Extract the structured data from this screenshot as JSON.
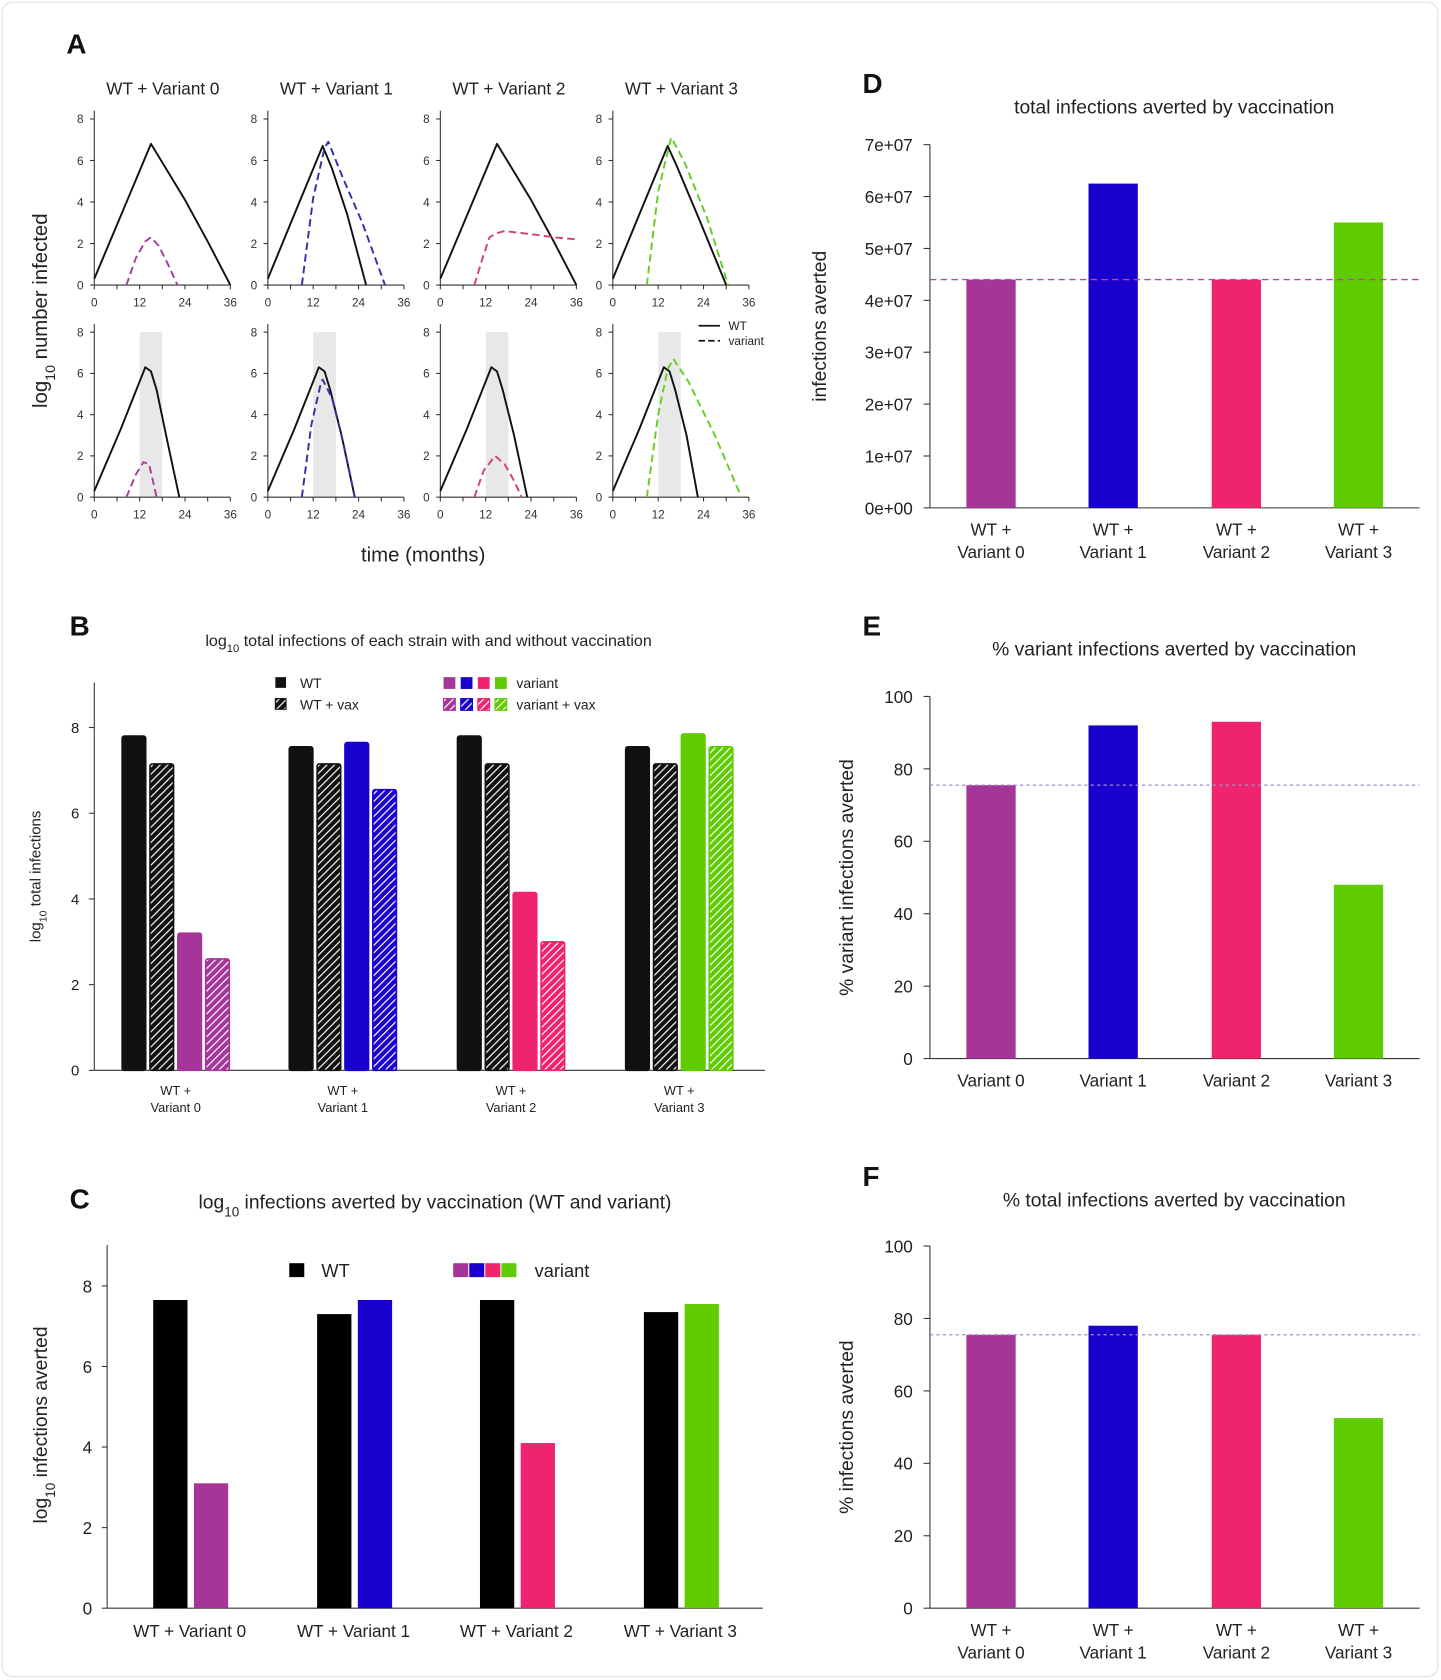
{
  "chart_data": [
    {
      "type": "line",
      "panel_label": "A",
      "xlabel": "time (months)",
      "ylabel": "log10 number infected",
      "xticks": [
        0,
        12,
        24,
        36
      ],
      "yticks": [
        0,
        2,
        4,
        6,
        8
      ],
      "xlim": [
        0,
        36
      ],
      "ylim": [
        0,
        8
      ],
      "legend": {
        "solid": "WT",
        "dashed": "variant",
        "placement": "right"
      },
      "rows": [
        {
          "vaccination_window": null,
          "subplots": [
            {
              "title": "WT + Variant 0",
              "color": "#a0409a",
              "wt": [
                [
                  0,
                  0.3
                ],
                [
                  6,
                  2.9
                ],
                [
                  12,
                  5.5
                ],
                [
                  15,
                  6.8
                ],
                [
                  18,
                  5.9
                ],
                [
                  24,
                  4.1
                ],
                [
                  30,
                  2.1
                ],
                [
                  36,
                  0
                ]
              ],
              "variant": [
                [
                  8.5,
                  0
                ],
                [
                  11,
                  1.3
                ],
                [
                  13.5,
                  2.1
                ],
                [
                  15,
                  2.3
                ],
                [
                  17,
                  1.9
                ],
                [
                  19.5,
                  1.0
                ],
                [
                  22,
                  0
                ]
              ]
            },
            {
              "title": "WT + Variant 1",
              "color": "#3030a8",
              "wt": [
                [
                  0,
                  0.3
                ],
                [
                  7,
                  3.4
                ],
                [
                  14.5,
                  6.7
                ],
                [
                  17,
                  5.6
                ],
                [
                  21,
                  3.4
                ],
                [
                  26,
                  0
                ]
              ],
              "variant": [
                [
                  9,
                  0
                ],
                [
                  12,
                  4.2
                ],
                [
                  15,
                  6.6
                ],
                [
                  16,
                  6.9
                ],
                [
                  20,
                  5.1
                ],
                [
                  25,
                  3.0
                ],
                [
                  31,
                  0
                ]
              ]
            },
            {
              "title": "WT + Variant 2",
              "color": "#d0407a",
              "wt": [
                [
                  0,
                  0.3
                ],
                [
                  6,
                  2.9
                ],
                [
                  12,
                  5.5
                ],
                [
                  15,
                  6.8
                ],
                [
                  18,
                  5.9
                ],
                [
                  24,
                  4.1
                ],
                [
                  30,
                  2.1
                ],
                [
                  36,
                  0
                ]
              ],
              "variant": [
                [
                  9,
                  0
                ],
                [
                  11,
                  1.2
                ],
                [
                  13,
                  2.3
                ],
                [
                  15,
                  2.5
                ],
                [
                  17,
                  2.6
                ],
                [
                  24,
                  2.45
                ],
                [
                  30,
                  2.3
                ],
                [
                  36,
                  2.2
                ]
              ]
            },
            {
              "title": "WT + Variant 3",
              "color": "#66cc22",
              "wt": [
                [
                  0,
                  0.3
                ],
                [
                  7,
                  3.4
                ],
                [
                  14.5,
                  6.7
                ],
                [
                  17,
                  5.7
                ],
                [
                  23,
                  3.1
                ],
                [
                  30,
                  0
                ]
              ],
              "variant": [
                [
                  9,
                  0
                ],
                [
                  12,
                  4.5
                ],
                [
                  15,
                  6.8
                ],
                [
                  15.5,
                  7.1
                ],
                [
                  19,
                  5.9
                ],
                [
                  25,
                  3.2
                ],
                [
                  30.5,
                  0
                ]
              ]
            }
          ]
        },
        {
          "vaccination_window": [
            12,
            18
          ],
          "subplots": [
            {
              "color": "#a0409a",
              "wt": [
                [
                  0,
                  0.3
                ],
                [
                  7,
                  3.3
                ],
                [
                  13.5,
                  6.3
                ],
                [
                  15,
                  6.1
                ],
                [
                  16.5,
                  5.2
                ],
                [
                  19,
                  3.0
                ],
                [
                  22.5,
                  0
                ]
              ],
              "variant": [
                [
                  8.5,
                  0
                ],
                [
                  11,
                  1.1
                ],
                [
                  13,
                  1.7
                ],
                [
                  14.5,
                  1.6
                ],
                [
                  16.5,
                  0
                ]
              ]
            },
            {
              "color": "#3030a8",
              "wt": [
                [
                  0,
                  0.3
                ],
                [
                  7,
                  3.3
                ],
                [
                  13.5,
                  6.3
                ],
                [
                  15,
                  6.1
                ],
                [
                  16.5,
                  5.2
                ],
                [
                  19.5,
                  3.0
                ],
                [
                  23,
                  0
                ]
              ],
              "variant": [
                [
                  9,
                  0
                ],
                [
                  11.5,
                  3.5
                ],
                [
                  14,
                  5.5
                ],
                [
                  14.5,
                  5.7
                ],
                [
                  17,
                  4.8
                ],
                [
                  20,
                  2.6
                ],
                [
                  23,
                  0
                ]
              ]
            },
            {
              "color": "#d0407a",
              "wt": [
                [
                  0,
                  0.3
                ],
                [
                  7,
                  3.3
                ],
                [
                  13.5,
                  6.3
                ],
                [
                  15,
                  6.1
                ],
                [
                  16.5,
                  5.2
                ],
                [
                  19.5,
                  3.0
                ],
                [
                  23,
                  0
                ]
              ],
              "variant": [
                [
                  9,
                  0
                ],
                [
                  11.5,
                  1.3
                ],
                [
                  14.5,
                  2.0
                ],
                [
                  17,
                  1.6
                ],
                [
                  19.5,
                  0.8
                ],
                [
                  21.5,
                  0
                ]
              ]
            },
            {
              "color": "#66cc22",
              "wt": [
                [
                  0,
                  0.3
                ],
                [
                  7,
                  3.3
                ],
                [
                  13.5,
                  6.3
                ],
                [
                  15,
                  6.1
                ],
                [
                  16.5,
                  5.2
                ],
                [
                  19.5,
                  3.0
                ],
                [
                  22.5,
                  0
                ]
              ],
              "variant": [
                [
                  9,
                  0
                ],
                [
                  12,
                  4.0
                ],
                [
                  14.5,
                  6.2
                ],
                [
                  16,
                  6.7
                ],
                [
                  20,
                  5.6
                ],
                [
                  27,
                  3.0
                ],
                [
                  34,
                  0
                ]
              ]
            }
          ]
        }
      ]
    },
    {
      "type": "bar",
      "panel_label": "B",
      "title": "log10 total infections of each strain with and without vaccination",
      "ylabel": "log10 total infections",
      "ylim": [
        0,
        9
      ],
      "yticks": [
        0,
        2,
        4,
        6,
        8
      ],
      "categories": [
        [
          "WT +",
          "Variant 0"
        ],
        [
          "WT +",
          "Variant 1"
        ],
        [
          "WT +",
          "Variant 2"
        ],
        [
          "WT +",
          "Variant 3"
        ]
      ],
      "variant_colors": [
        "#a6359a",
        "#1a00cc",
        "#f0246e",
        "#5fcc00"
      ],
      "series": [
        {
          "name": "WT",
          "values": [
            7.8,
            7.55,
            7.8,
            7.55
          ]
        },
        {
          "name": "WT + vax",
          "values": [
            7.15,
            7.15,
            7.15,
            7.15
          ]
        },
        {
          "name": "variant",
          "values": [
            3.2,
            7.65,
            4.15,
            7.85
          ]
        },
        {
          "name": "variant + vax",
          "values": [
            2.6,
            6.55,
            3.0,
            7.55
          ]
        }
      ],
      "legend_placement": "top-center"
    },
    {
      "type": "bar",
      "panel_label": "C",
      "title": "log10 infections averted by vaccination (WT and variant)",
      "ylabel": "log10 infections averted",
      "ylim": [
        0,
        9
      ],
      "yticks": [
        0,
        2,
        4,
        6,
        8
      ],
      "categories": [
        [
          "WT + Variant 0"
        ],
        [
          "WT + Variant 1"
        ],
        [
          "WT + Variant 2"
        ],
        [
          "WT + Variant 3"
        ]
      ],
      "variant_colors": [
        "#a6359a",
        "#1a00cc",
        "#f0246e",
        "#5fcc00"
      ],
      "series": [
        {
          "name": "WT",
          "values": [
            7.65,
            7.3,
            7.65,
            7.35
          ]
        },
        {
          "name": "variant",
          "values": [
            3.1,
            7.65,
            4.1,
            7.55
          ]
        }
      ],
      "legend_placement": "top-center"
    },
    {
      "type": "bar",
      "panel_label": "D",
      "title": "total infections averted by vaccination",
      "ylabel": "infections averted",
      "ylim": [
        0,
        70000000
      ],
      "yticks": [
        0,
        10000000,
        20000000,
        30000000,
        40000000,
        50000000,
        60000000,
        70000000
      ],
      "ytick_labels": [
        "0e+00",
        "1e+07",
        "2e+07",
        "3e+07",
        "4e+07",
        "5e+07",
        "6e+07",
        "7e+07"
      ],
      "categories": [
        [
          "WT +",
          "Variant 0"
        ],
        [
          "WT +",
          "Variant 1"
        ],
        [
          "WT +",
          "Variant 2"
        ],
        [
          "WT +",
          "Variant 3"
        ]
      ],
      "colors": [
        "#a6359a",
        "#1a00cc",
        "#f0246e",
        "#5fcc00"
      ],
      "values": [
        44000000,
        62500000,
        44000000,
        55000000
      ],
      "reference_line": 44000000
    },
    {
      "type": "bar",
      "panel_label": "E",
      "title": "% variant infections averted by vaccination",
      "ylabel": "% variant infections averted",
      "ylim": [
        0,
        100
      ],
      "yticks": [
        0,
        20,
        40,
        60,
        80,
        100
      ],
      "categories": [
        [
          "Variant 0"
        ],
        [
          "Variant 1"
        ],
        [
          "Variant 2"
        ],
        [
          "Variant 3"
        ]
      ],
      "colors": [
        "#a6359a",
        "#1a00cc",
        "#f0246e",
        "#5fcc00"
      ],
      "values": [
        75.5,
        92,
        93,
        48
      ],
      "reference_line": 75.5
    },
    {
      "type": "bar",
      "panel_label": "F",
      "title": "% total infections averted by vaccination",
      "ylabel": "% infections averted",
      "ylim": [
        0,
        100
      ],
      "yticks": [
        0,
        20,
        40,
        60,
        80,
        100
      ],
      "categories": [
        [
          "WT +",
          "Variant 0"
        ],
        [
          "WT +",
          "Variant 1"
        ],
        [
          "WT +",
          "Variant 2"
        ],
        [
          "WT +",
          "Variant 3"
        ]
      ],
      "colors": [
        "#a6359a",
        "#1a00cc",
        "#f0246e",
        "#5fcc00"
      ],
      "values": [
        75.5,
        78,
        75.5,
        52.5
      ],
      "reference_line": 75.5
    }
  ]
}
